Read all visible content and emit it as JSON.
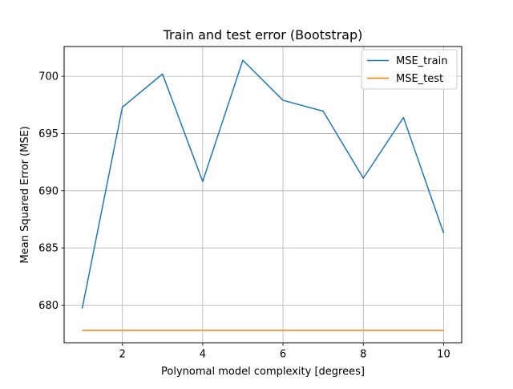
{
  "chart_data": {
    "type": "line",
    "title": "Train and test error (Bootstrap)",
    "xlabel": "Polynomal model complexity [degrees]",
    "ylabel": "Mean Squared Error (MSE)",
    "x": [
      1,
      2,
      3,
      4,
      5,
      6,
      7,
      8,
      9,
      10
    ],
    "xlim": [
      0.55,
      10.45
    ],
    "ylim": [
      676.7,
      702.6
    ],
    "xticks": [
      2,
      4,
      6,
      8,
      10
    ],
    "yticks": [
      680,
      685,
      690,
      695,
      700
    ],
    "grid": true,
    "legend_position": "top-right",
    "series": [
      {
        "name": "MSE_train",
        "color": "#1f77b4",
        "values": [
          679.7,
          697.3,
          700.2,
          690.8,
          701.4,
          697.9,
          696.95,
          691.1,
          696.4,
          686.3
        ]
      },
      {
        "name": "MSE_test",
        "color": "#ff7f0e",
        "values": [
          677.8,
          677.8,
          677.8,
          677.8,
          677.8,
          677.8,
          677.8,
          677.8,
          677.8,
          677.8
        ]
      }
    ]
  }
}
